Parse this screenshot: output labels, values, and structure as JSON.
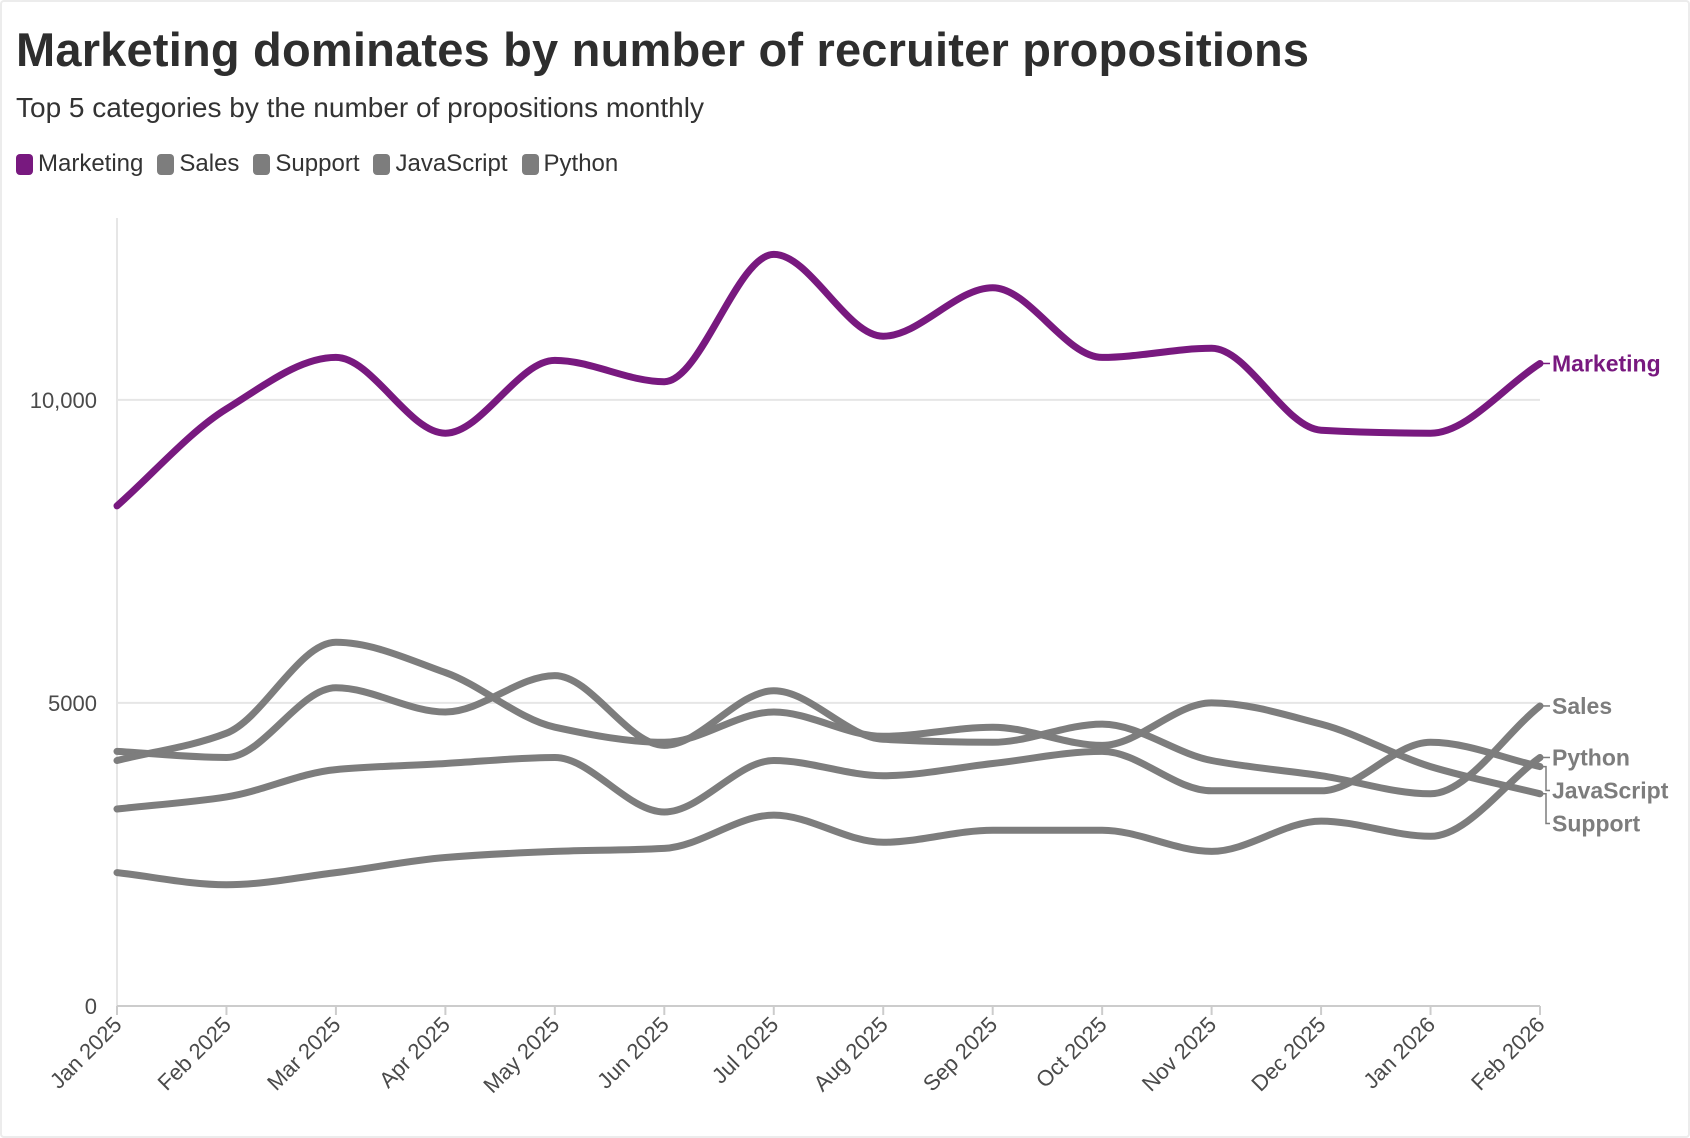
{
  "title": "Marketing dominates by number of recruiter propositions",
  "subtitle": "Top 5 categories by the number of propositions monthly",
  "colors": {
    "highlight": "#78197f",
    "muted": "#7d7d7d",
    "grid": "#e6e6e6",
    "axis": "#cccccc"
  },
  "chart_data": {
    "type": "line",
    "title": "Marketing dominates by number of recruiter propositions",
    "subtitle": "Top 5 categories by the number of propositions monthly",
    "xlabel": "",
    "ylabel": "",
    "x": [
      "Jan 2025",
      "Feb 2025",
      "Mar 2025",
      "Apr 2025",
      "May 2025",
      "Jun 2025",
      "Jul 2025",
      "Aug 2025",
      "Sep 2025",
      "Oct 2025",
      "Nov 2025",
      "Dec 2025",
      "Jan 2026",
      "Feb 2026"
    ],
    "ylim": [
      0,
      13000
    ],
    "yticks": [
      0,
      5000,
      10000
    ],
    "ytick_labels": [
      "0",
      "5000",
      "10,000"
    ],
    "grid": true,
    "legend": "top-left",
    "series": [
      {
        "name": "Marketing",
        "color": "#78197f",
        "values": [
          8250,
          9850,
          10700,
          9450,
          10650,
          10300,
          12400,
          11050,
          11850,
          10700,
          10850,
          9500,
          9450,
          10600
        ]
      },
      {
        "name": "Sales",
        "color": "#7d7d7d",
        "values": [
          4200,
          4100,
          5250,
          4850,
          5450,
          4300,
          5200,
          4400,
          4350,
          4650,
          4050,
          3800,
          3500,
          4950
        ]
      },
      {
        "name": "Support",
        "color": "#7d7d7d",
        "values": [
          4050,
          4500,
          6000,
          5500,
          4600,
          4350,
          4850,
          4450,
          4600,
          4300,
          5000,
          4650,
          3950,
          3500
        ]
      },
      {
        "name": "JavaScript",
        "color": "#7d7d7d",
        "values": [
          3250,
          3450,
          3900,
          4000,
          4100,
          3200,
          4050,
          3800,
          4000,
          4200,
          3550,
          3550,
          4350,
          3950
        ]
      },
      {
        "name": "Python",
        "color": "#7d7d7d",
        "values": [
          2200,
          2000,
          2200,
          2450,
          2550,
          2600,
          3150,
          2700,
          2900,
          2900,
          2550,
          3050,
          2800,
          4100
        ]
      }
    ]
  }
}
